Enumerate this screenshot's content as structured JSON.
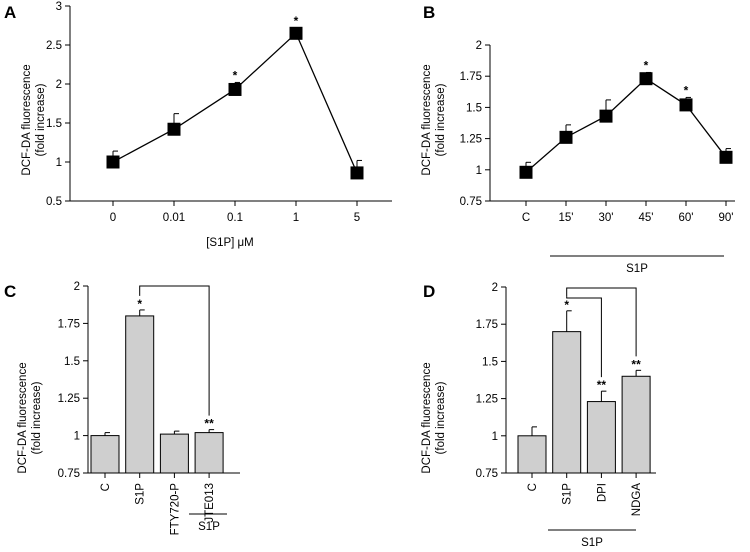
{
  "chart_data": [
    {
      "panel": "A",
      "type": "line",
      "ylabel": "DCF-DA fluorescence (fold increase)",
      "ylabel_lines": [
        "DCF-DA fluorescence",
        "(fold increase)"
      ],
      "xlabel": "[S1P] μM",
      "categories": [
        "0",
        "0.01",
        "0.1",
        "1",
        "5"
      ],
      "values": [
        1.0,
        1.42,
        1.93,
        2.65,
        0.86
      ],
      "errors": [
        0.14,
        0.2,
        0.09,
        0.07,
        0.16
      ],
      "stars": [
        "",
        "",
        "*",
        "*",
        ""
      ],
      "ylim": [
        0.5,
        3
      ],
      "yticks": [
        "0.5",
        "1",
        "1.5",
        "2",
        "2.5",
        "3"
      ]
    },
    {
      "panel": "B",
      "type": "line",
      "ylabel": "DCF-DA fluorescence (fold increase)",
      "ylabel_lines": [
        "DCF-DA fluorescence",
        "(fold increase)"
      ],
      "categories": [
        "C",
        "15'",
        "30'",
        "45'",
        "60'",
        "90'"
      ],
      "values": [
        0.98,
        1.26,
        1.43,
        1.73,
        1.52,
        1.1
      ],
      "errors": [
        0.08,
        0.1,
        0.13,
        0.05,
        0.06,
        0.07
      ],
      "stars": [
        "",
        "",
        "",
        "*",
        "*",
        ""
      ],
      "ylim": [
        0.75,
        2
      ],
      "yticks": [
        "0.75",
        "1",
        "1.25",
        "1.5",
        "1.75",
        "2"
      ],
      "group_label": "S1P"
    },
    {
      "panel": "C",
      "type": "bar",
      "ylabel": "DCF-DA fluorescence (fold increase)",
      "ylabel_lines": [
        "DCF-DA fluorescence",
        "(fold increase)"
      ],
      "categories": [
        "C",
        "S1P",
        "FTY720-P",
        "JTE013"
      ],
      "values": [
        1.0,
        1.8,
        1.01,
        1.02
      ],
      "errors": [
        0.02,
        0.04,
        0.02,
        0.02
      ],
      "stars": [
        "",
        "*",
        "",
        "**"
      ],
      "ylim": [
        0.75,
        2
      ],
      "yticks": [
        "0.75",
        "1",
        "1.25",
        "1.5",
        "1.75",
        "2"
      ],
      "group_label": "S1P"
    },
    {
      "panel": "D",
      "type": "bar",
      "ylabel": "DCF-DA fluorescence (fold increase)",
      "ylabel_lines": [
        "DCF-DA fluorescence",
        "(fold increase)"
      ],
      "categories": [
        "C",
        "S1P",
        "DPI",
        "NDGA"
      ],
      "values": [
        1.0,
        1.7,
        1.23,
        1.4
      ],
      "errors": [
        0.06,
        0.14,
        0.07,
        0.04
      ],
      "stars": [
        "",
        "*",
        "**",
        "**"
      ],
      "ylim": [
        0.75,
        2
      ],
      "yticks": [
        "0.75",
        "1",
        "1.25",
        "1.5",
        "1.75",
        "2"
      ],
      "group_label": "S1P"
    }
  ]
}
